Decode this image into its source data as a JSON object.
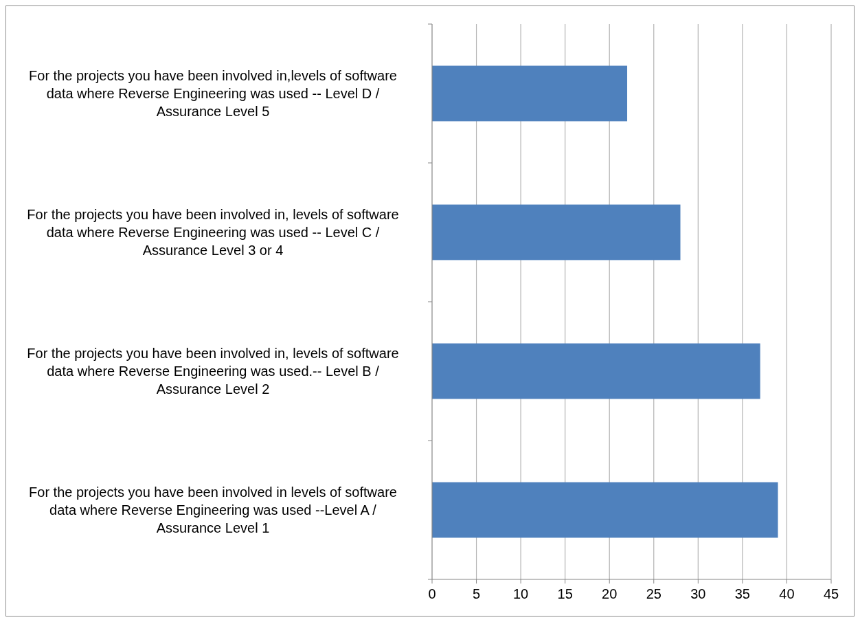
{
  "chart_data": {
    "type": "bar",
    "orientation": "horizontal",
    "categories": [
      "For the projects you have been involved in,levels of software data where Reverse Engineering was used -- Level D / Assurance Level 5",
      "For the projects you have been involved in, levels of software data where Reverse Engineering was used -- Level C / Assurance Level 3 or 4",
      "For the projects you have been involved in, levels of software data where Reverse Engineering was used.-- Level B / Assurance Level 2",
      "For the projects you have been involved in levels of software data where Reverse Engineering was used --Level A / Assurance Level 1"
    ],
    "values": [
      22,
      28,
      37,
      39
    ],
    "color": "#4f81bd",
    "xlim": [
      0,
      45
    ],
    "xticks": [
      0,
      5,
      10,
      15,
      20,
      25,
      30,
      35,
      40,
      45
    ],
    "grid": "x"
  }
}
